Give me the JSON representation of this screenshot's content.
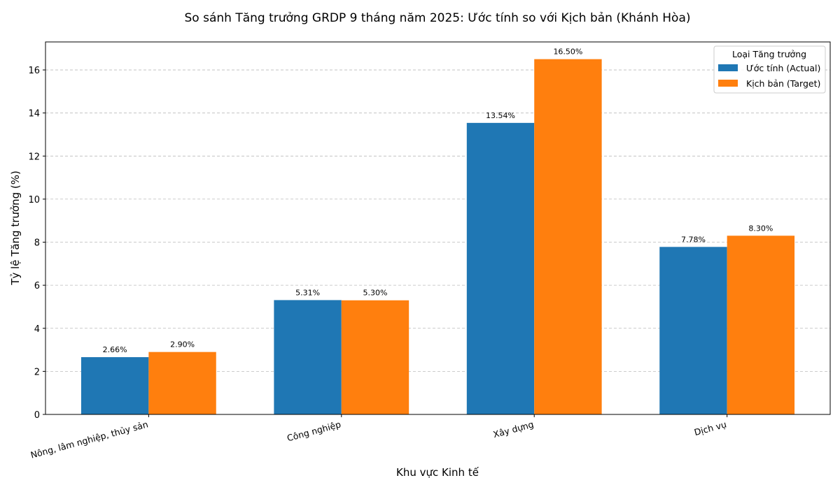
{
  "chart_data": {
    "type": "bar",
    "title": "So sánh Tăng trưởng GRDP 9 tháng năm 2025: Ước tính so với Kịch bản (Khánh Hòa)",
    "xlabel": "Khu vực Kinh tế",
    "ylabel": "Tỷ lệ Tăng trưởng (%)",
    "categories": [
      "Nông, lâm nghiệp, thủy sản",
      "Công nghiệp",
      "Xây dựng",
      "Dịch vụ"
    ],
    "series": [
      {
        "name": "Ước tính (Actual)",
        "color": "#1f77b4",
        "values": [
          2.66,
          5.31,
          13.54,
          7.78
        ],
        "labels": [
          "2.66%",
          "5.31%",
          "13.54%",
          "7.78%"
        ]
      },
      {
        "name": "Kịch bản (Target)",
        "color": "#ff7f0e",
        "values": [
          2.9,
          5.3,
          16.5,
          8.3
        ],
        "labels": [
          "2.90%",
          "5.30%",
          "16.50%",
          "8.30%"
        ]
      }
    ],
    "ylim": [
      0,
      17.3
    ],
    "yticks": [
      "0",
      "2",
      "4",
      "6",
      "8",
      "10",
      "12",
      "14",
      "16"
    ],
    "grid": "horizontal dashed",
    "legend": {
      "title": "Loại Tăng trưởng",
      "placement": "top-right"
    }
  }
}
